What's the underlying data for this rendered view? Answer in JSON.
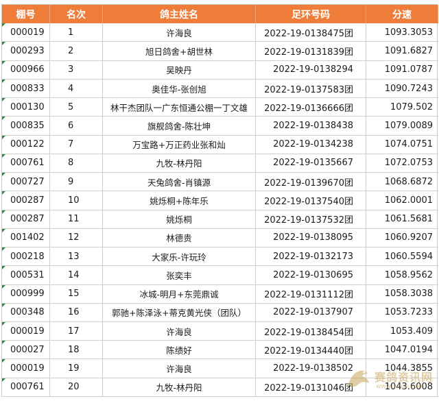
{
  "table": {
    "headers": [
      "棚号",
      "名次",
      "鸽主姓名",
      "足环号码",
      "分速"
    ],
    "rows": [
      [
        "000019",
        "1",
        "许海良",
        "2022-19-0138475团",
        "1093.3053"
      ],
      [
        "000293",
        "2",
        "旭日鸽舍+胡世林",
        "2022-19-0131839团",
        "1091.6827"
      ],
      [
        "000966",
        "3",
        "吴映丹",
        "2022-19-0138294",
        "1091.0787"
      ],
      [
        "000833",
        "4",
        "奥佳华-张创旭",
        "2022-19-0137583团",
        "1090.7243"
      ],
      [
        "000130",
        "5",
        "林干杰团队一广东恒通公棚一丁文雄",
        "2022-19-0136666团",
        "1079.502"
      ],
      [
        "000835",
        "6",
        "旗舰鸽舍-陈壮坤",
        "2022-19-0138438",
        "1079.0089"
      ],
      [
        "000122",
        "7",
        "万宝路+万正药业张和灿",
        "2022-19-0134238",
        "1074.0751"
      ],
      [
        "000761",
        "8",
        "九牧-林丹阳",
        "2022-19-0135667",
        "1072.0753"
      ],
      [
        "000727",
        "9",
        "天兔鸽舍-肖镇源",
        "2022-19-0139670团",
        "1068.6872"
      ],
      [
        "000287",
        "10",
        "姚烁桐+陈年乐",
        "2022-19-0137540团",
        "1062.0001"
      ],
      [
        "000287",
        "11",
        "姚烁桐",
        "2022-19-0137532团",
        "1061.5681"
      ],
      [
        "001402",
        "12",
        "林德贵",
        "2022-19-0138095",
        "1060.9207"
      ],
      [
        "000218",
        "13",
        "大家乐-许玩玲",
        "2022-19-0132173",
        "1060.5594"
      ],
      [
        "000531",
        "14",
        "张奕丰",
        "2022-19-0130695",
        "1058.9562"
      ],
      [
        "000999",
        "15",
        "冰城-明月+东莞鼎诚",
        "2022-19-0131112团",
        "1058.3038"
      ],
      [
        "000348",
        "16",
        "郭驰+陈泽泳+蒂克黄光侠（团队）",
        "2022-19-0137907",
        "1053.7233"
      ],
      [
        "000019",
        "17",
        "许海良",
        "2022-19-0138454团",
        "1053.409"
      ],
      [
        "000027",
        "18",
        "陈绩好",
        "2022-19-0134440团",
        "1047.0194"
      ],
      [
        "000019",
        "19",
        "许海良",
        "2022-19-0138502",
        "1044.3855"
      ],
      [
        "000761",
        "20",
        "九牧-林丹阳",
        "2022-19-0131046团",
        "1043.6008"
      ]
    ]
  },
  "watermark": {
    "text": "赛鸽资讯网",
    "sub": "www.saige.com"
  },
  "colors": {
    "header_bg": "#ee7d3a",
    "header_text": "#ffffff",
    "row_marker": "#2e8b3a"
  }
}
